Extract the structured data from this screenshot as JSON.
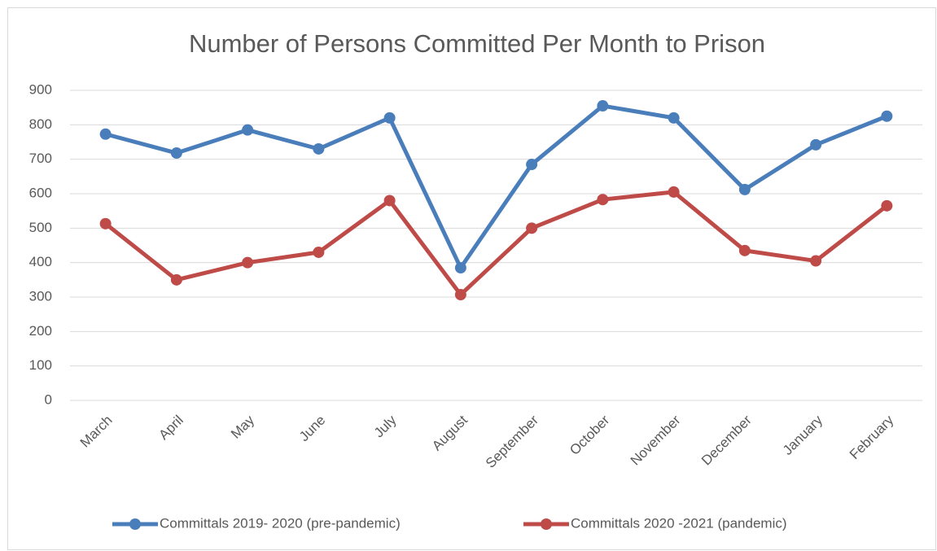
{
  "chart_data": {
    "type": "line",
    "title": "Number of Persons Committed Per Month to Prison",
    "categories": [
      "March",
      "April",
      "May",
      "June",
      "July",
      "August",
      "September",
      "October",
      "November",
      "December",
      "January",
      "February"
    ],
    "series": [
      {
        "name": "Committals 2019- 2020 (pre-pandemic)",
        "color": "#4a7ebb",
        "values": [
          773,
          718,
          785,
          730,
          820,
          385,
          685,
          855,
          820,
          612,
          742,
          825
        ]
      },
      {
        "name": "Committals 2020 -2021 (pandemic)",
        "color": "#be4b48",
        "values": [
          513,
          350,
          400,
          430,
          580,
          307,
          500,
          583,
          605,
          435,
          405,
          565
        ]
      }
    ],
    "ylim": [
      0,
      900
    ],
    "yticks": [
      0,
      100,
      200,
      300,
      400,
      500,
      600,
      700,
      800,
      900
    ],
    "grid": true,
    "legend": "bottom"
  }
}
